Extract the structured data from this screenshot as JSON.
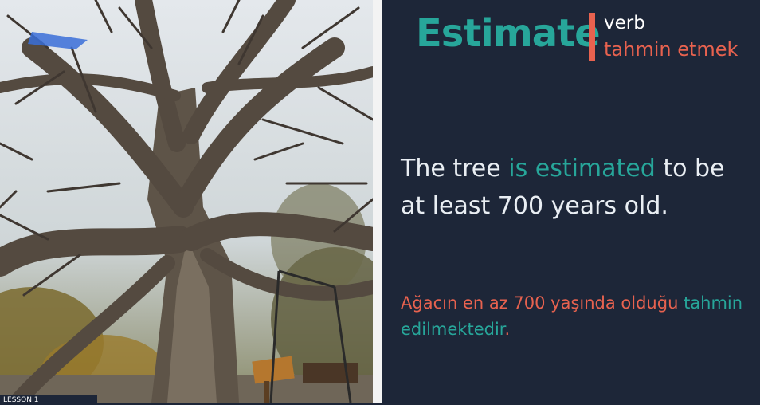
{
  "word": {
    "title": "Estimate",
    "part_of_speech": "verb",
    "translation": "tahmin etmek"
  },
  "example": {
    "before": "The tree ",
    "highlight": "is estimated",
    "after": " to be at least 700 years old."
  },
  "example_translation": {
    "before": "Ağacın en az 700 yaşında olduğu ",
    "highlight": "tahmin edilmektedir",
    "after": "."
  },
  "lesson_label": "LESSON 1",
  "colors": {
    "background": "#1d2638",
    "accent_teal": "#27a69a",
    "accent_coral": "#e8624f"
  }
}
